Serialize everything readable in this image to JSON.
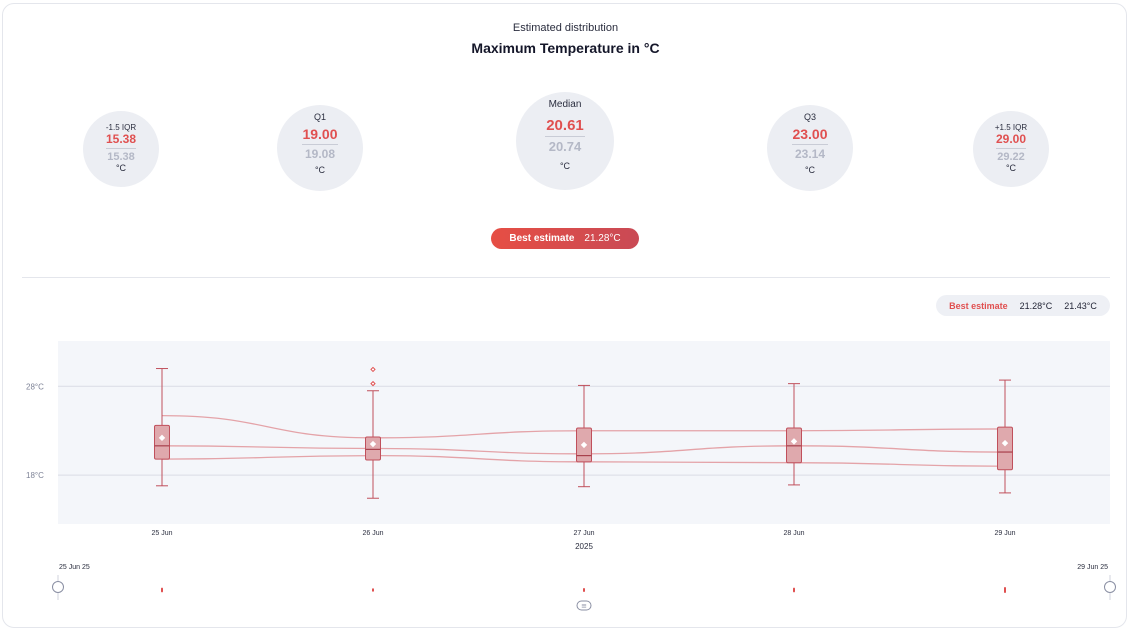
{
  "header": {
    "subtitle": "Estimated distribution",
    "title": "Maximum Temperature in °C"
  },
  "stats": [
    {
      "label": "-1.5 IQR",
      "primary": "15.38",
      "secondary": "15.38",
      "unit": "°C"
    },
    {
      "label": "Q1",
      "primary": "19.00",
      "secondary": "19.08",
      "unit": "°C"
    },
    {
      "label": "Median",
      "primary": "20.61",
      "secondary": "20.74",
      "unit": "°C"
    },
    {
      "label": "Q3",
      "primary": "23.00",
      "secondary": "23.14",
      "unit": "°C"
    },
    {
      "label": "+1.5 IQR",
      "primary": "29.00",
      "secondary": "29.22",
      "unit": "°C"
    }
  ],
  "best_estimate": {
    "label": "Best estimate",
    "value": "21.28°C"
  },
  "legend": {
    "label": "Best estimate",
    "value_a": "21.28°C",
    "value_b": "21.43°C"
  },
  "colors": {
    "accent": "#e05050",
    "box_fill": "#dfa9ad",
    "box_stroke": "#c0505c",
    "plot_bg": "#f4f6fa",
    "muted": "#b4b8c6"
  },
  "chart_data": {
    "type": "box",
    "categories": [
      "25 Jun",
      "26 Jun",
      "27 Jun",
      "28 Jun",
      "29 Jun"
    ],
    "xlabel": "2025",
    "ylabel": "",
    "yticks": [
      {
        "value": 18,
        "label": "18°C"
      },
      {
        "value": 28,
        "label": "28°C"
      }
    ],
    "ylim": [
      12.5,
      33.1
    ],
    "grid": true,
    "boxes": [
      {
        "whisker_low": 16.8,
        "q1": 19.8,
        "median": 21.3,
        "q3": 23.6,
        "whisker_high": 30.0,
        "mean": 22.2,
        "outliers": []
      },
      {
        "whisker_low": 15.4,
        "q1": 19.7,
        "median": 20.9,
        "q3": 22.3,
        "whisker_high": 27.5,
        "mean": 21.5,
        "outliers": [
          28.3,
          29.9
        ]
      },
      {
        "whisker_low": 16.7,
        "q1": 19.5,
        "median": 20.2,
        "q3": 23.3,
        "whisker_high": 28.1,
        "mean": 21.4,
        "outliers": []
      },
      {
        "whisker_low": 16.9,
        "q1": 19.4,
        "median": 21.3,
        "q3": 23.3,
        "whisker_high": 28.3,
        "mean": 21.8,
        "outliers": []
      },
      {
        "whisker_low": 16.0,
        "q1": 18.6,
        "median": 20.6,
        "q3": 23.4,
        "whisker_high": 28.7,
        "mean": 21.6,
        "outliers": []
      }
    ],
    "trend_lines": [
      {
        "name": "upper",
        "values": [
          24.7,
          22.2,
          23.0,
          23.0,
          23.2
        ]
      },
      {
        "name": "middle",
        "values": [
          21.3,
          21.0,
          20.4,
          21.3,
          20.6
        ]
      },
      {
        "name": "lower",
        "values": [
          19.8,
          20.2,
          19.5,
          19.4,
          19.0
        ]
      }
    ]
  },
  "range_slider": {
    "start_label": "25 Jun 25",
    "end_label": "29 Jun 25",
    "handle_symbol": "≡",
    "day_mark_heights": [
      0.7,
      0.4,
      0.5,
      0.7,
      1.0
    ]
  }
}
